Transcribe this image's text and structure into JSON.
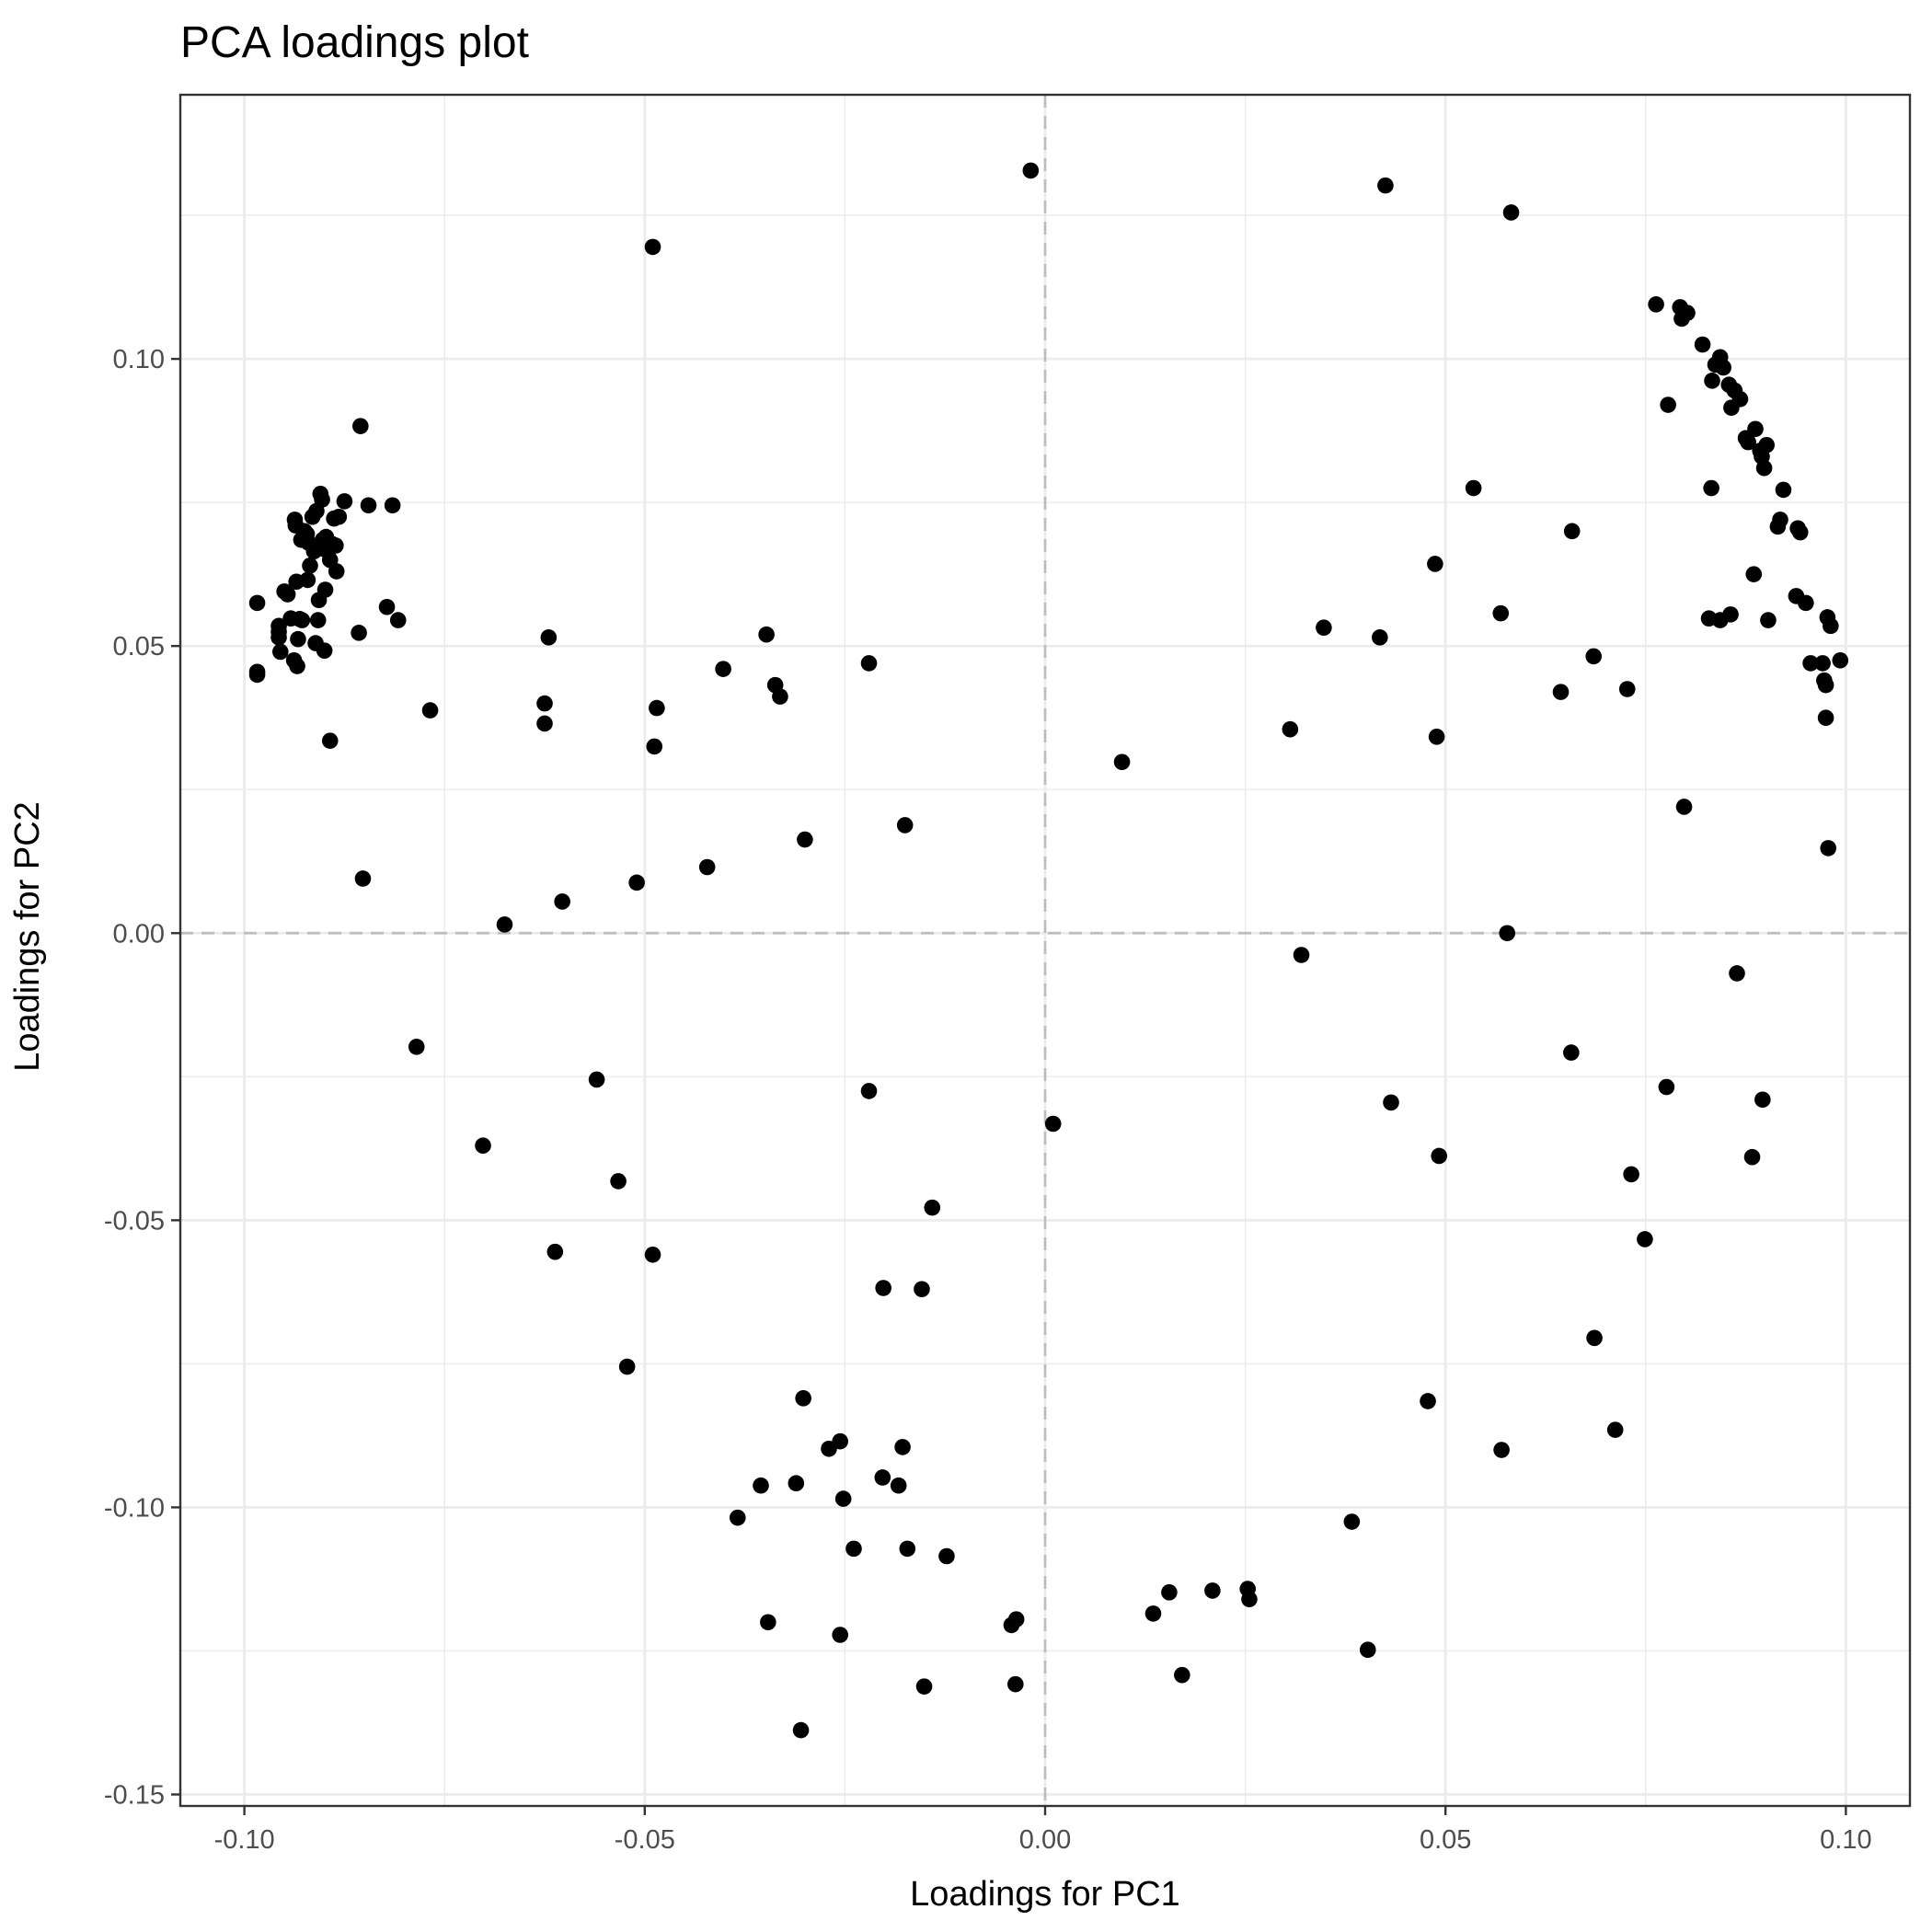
{
  "chart_data": {
    "type": "scatter",
    "title": "PCA loadings plot",
    "xlabel": "Loadings for PC1",
    "ylabel": "Loadings for PC2",
    "xlim": [
      -0.108,
      0.108
    ],
    "ylim": [
      -0.152,
      0.146
    ],
    "x_ticks": [
      -0.1,
      -0.05,
      0.0,
      0.05,
      0.1
    ],
    "x_tick_labels": [
      "-0.10",
      "-0.05",
      "0.00",
      "0.05",
      "0.10"
    ],
    "y_ticks": [
      -0.15,
      -0.1,
      -0.05,
      0.0,
      0.05,
      0.1
    ],
    "y_tick_labels": [
      "-0.15",
      "-0.10",
      "-0.05",
      "0.00",
      "0.05",
      "0.10"
    ],
    "reference_lines": {
      "x": 0,
      "y": 0,
      "style": "dashed",
      "color": "#bdbdbd"
    },
    "grid": true,
    "point_color": "#000000",
    "background": "#ffffff",
    "points": [
      [
        -0.0984,
        0.0575
      ],
      [
        -0.0984,
        0.0455
      ],
      [
        -0.0984,
        0.045
      ],
      [
        -0.0957,
        0.0535
      ],
      [
        -0.0957,
        0.0525
      ],
      [
        -0.0957,
        0.0515
      ],
      [
        -0.0955,
        0.049
      ],
      [
        -0.095,
        0.0595
      ],
      [
        -0.0946,
        0.059
      ],
      [
        -0.0942,
        0.0548
      ],
      [
        -0.0938,
        0.0475
      ],
      [
        -0.0937,
        0.072
      ],
      [
        -0.0936,
        0.071
      ],
      [
        -0.0935,
        0.0612
      ],
      [
        -0.0934,
        0.0465
      ],
      [
        -0.0933,
        0.0512
      ],
      [
        -0.0931,
        0.0547
      ],
      [
        -0.0929,
        0.0685
      ],
      [
        -0.0928,
        0.0545
      ],
      [
        -0.0925,
        0.07
      ],
      [
        -0.0922,
        0.0695
      ],
      [
        -0.0921,
        0.0615
      ],
      [
        -0.092,
        0.068
      ],
      [
        -0.0918,
        0.064
      ],
      [
        -0.0915,
        0.0725
      ],
      [
        -0.0913,
        0.0665
      ],
      [
        -0.0911,
        0.0505
      ],
      [
        -0.091,
        0.0735
      ],
      [
        -0.0908,
        0.0545
      ],
      [
        -0.0907,
        0.058
      ],
      [
        -0.0905,
        0.0765
      ],
      [
        -0.0904,
        0.067
      ],
      [
        -0.0903,
        0.0755
      ],
      [
        -0.0902,
        0.0685
      ],
      [
        -0.09,
        0.0492
      ],
      [
        -0.0899,
        0.0598
      ],
      [
        -0.0898,
        0.069
      ],
      [
        -0.0896,
        0.0665
      ],
      [
        -0.0894,
        0.0675
      ],
      [
        -0.0893,
        0.065
      ],
      [
        -0.0891,
        0.0678
      ],
      [
        -0.0888,
        0.0722
      ],
      [
        -0.0886,
        0.0675
      ],
      [
        -0.0885,
        0.063
      ],
      [
        -0.0882,
        0.0725
      ],
      [
        -0.0875,
        0.0752
      ],
      [
        -0.0857,
        0.0523
      ],
      [
        -0.0855,
        0.0883
      ],
      [
        -0.0852,
        0.0095
      ],
      [
        -0.0845,
        0.0745
      ],
      [
        -0.0822,
        0.0568
      ],
      [
        -0.0815,
        0.0745
      ],
      [
        -0.0808,
        0.0545
      ],
      [
        -0.0893,
        0.0335
      ],
      [
        -0.0785,
        -0.0198
      ],
      [
        -0.0768,
        0.0388
      ],
      [
        -0.0702,
        -0.037
      ],
      [
        -0.0675,
        0.0015
      ],
      [
        -0.0625,
        0.04
      ],
      [
        -0.0625,
        0.0365
      ],
      [
        -0.062,
        0.0515
      ],
      [
        -0.0612,
        -0.0555
      ],
      [
        -0.0603,
        0.0055
      ],
      [
        -0.056,
        -0.0255
      ],
      [
        -0.0533,
        -0.0432
      ],
      [
        -0.0522,
        -0.0755
      ],
      [
        -0.051,
        0.0088
      ],
      [
        -0.049,
        0.1195
      ],
      [
        -0.049,
        -0.056
      ],
      [
        -0.0488,
        0.0325
      ],
      [
        -0.0485,
        0.0392
      ],
      [
        -0.0422,
        0.0115
      ],
      [
        -0.0402,
        0.046
      ],
      [
        -0.0384,
        -0.1018
      ],
      [
        -0.0355,
        -0.0962
      ],
      [
        -0.0348,
        0.052
      ],
      [
        -0.0346,
        -0.12
      ],
      [
        -0.0337,
        0.0432
      ],
      [
        -0.0331,
        0.0412
      ],
      [
        -0.0311,
        -0.0958
      ],
      [
        -0.0305,
        -0.1388
      ],
      [
        -0.0302,
        -0.081
      ],
      [
        -0.03,
        0.0163
      ],
      [
        -0.027,
        -0.0898
      ],
      [
        -0.0256,
        -0.0885
      ],
      [
        -0.0256,
        -0.1222
      ],
      [
        -0.0252,
        -0.0985
      ],
      [
        -0.0239,
        -0.1072
      ],
      [
        -0.022,
        0.047
      ],
      [
        -0.022,
        -0.0275
      ],
      [
        -0.0203,
        -0.0948
      ],
      [
        -0.0202,
        -0.0618
      ],
      [
        -0.0183,
        -0.0962
      ],
      [
        -0.0178,
        -0.0895
      ],
      [
        -0.0175,
        0.0188
      ],
      [
        -0.0172,
        -0.1072
      ],
      [
        -0.0154,
        -0.062
      ],
      [
        -0.0151,
        -0.1312
      ],
      [
        -0.0141,
        -0.0478
      ],
      [
        -0.0123,
        -0.1085
      ],
      [
        -0.0042,
        -0.1205
      ],
      [
        -0.0036,
        -0.1195
      ],
      [
        -0.0037,
        -0.1308
      ],
      [
        -0.0018,
        0.1328
      ],
      [
        0.001,
        -0.0332
      ],
      [
        0.0096,
        0.0298
      ],
      [
        0.0135,
        -0.1185
      ],
      [
        0.0155,
        -0.1148
      ],
      [
        0.0171,
        -0.1292
      ],
      [
        0.0209,
        -0.1145
      ],
      [
        0.0253,
        -0.1142
      ],
      [
        0.0255,
        -0.116
      ],
      [
        0.0306,
        0.0355
      ],
      [
        0.032,
        -0.0038
      ],
      [
        0.0348,
        0.0532
      ],
      [
        0.0383,
        -0.1025
      ],
      [
        0.0403,
        -0.1248
      ],
      [
        0.0418,
        0.0515
      ],
      [
        0.0425,
        0.1302
      ],
      [
        0.0432,
        -0.0295
      ],
      [
        0.0478,
        -0.0815
      ],
      [
        0.0487,
        0.0643
      ],
      [
        0.0489,
        0.0342
      ],
      [
        0.0492,
        -0.0388
      ],
      [
        0.0535,
        0.0775
      ],
      [
        0.0569,
        0.0557
      ],
      [
        0.057,
        -0.09
      ],
      [
        0.0577,
        0.0
      ],
      [
        0.0582,
        0.1255
      ],
      [
        0.0644,
        0.042
      ],
      [
        0.0657,
        -0.0208
      ],
      [
        0.0658,
        0.07
      ],
      [
        0.0685,
        0.0482
      ],
      [
        0.0686,
        -0.0705
      ],
      [
        0.0712,
        -0.0865
      ],
      [
        0.0727,
        0.0425
      ],
      [
        0.0732,
        -0.042
      ],
      [
        0.0749,
        -0.0533
      ],
      [
        0.0763,
        0.1095
      ],
      [
        0.0776,
        -0.0268
      ],
      [
        0.0778,
        0.092
      ],
      [
        0.0793,
        0.109
      ],
      [
        0.0795,
        0.107
      ],
      [
        0.0798,
        0.022
      ],
      [
        0.0802,
        0.108
      ],
      [
        0.0821,
        0.1025
      ],
      [
        0.0829,
        0.0548
      ],
      [
        0.0832,
        0.0775
      ],
      [
        0.0833,
        0.0962
      ],
      [
        0.0837,
        0.099
      ],
      [
        0.0843,
        0.0545
      ],
      [
        0.0843,
        0.1003
      ],
      [
        0.0847,
        0.0985
      ],
      [
        0.0854,
        0.0955
      ],
      [
        0.0856,
        0.0555
      ],
      [
        0.0857,
        0.0915
      ],
      [
        0.0861,
        0.0945
      ],
      [
        0.0864,
        -0.007
      ],
      [
        0.0868,
        0.093
      ],
      [
        0.0875,
        0.0862
      ],
      [
        0.0878,
        0.0855
      ],
      [
        0.0883,
        -0.039
      ],
      [
        0.0885,
        0.0625
      ],
      [
        0.0887,
        0.0878
      ],
      [
        0.0893,
        0.084
      ],
      [
        0.0895,
        0.083
      ],
      [
        0.0896,
        -0.029
      ],
      [
        0.0898,
        0.081
      ],
      [
        0.0901,
        0.085
      ],
      [
        0.0903,
        0.0545
      ],
      [
        0.0915,
        0.0708
      ],
      [
        0.0918,
        0.072
      ],
      [
        0.0922,
        0.0772
      ],
      [
        0.0938,
        0.0587
      ],
      [
        0.094,
        0.0705
      ],
      [
        0.0943,
        0.0698
      ],
      [
        0.095,
        0.0575
      ],
      [
        0.0956,
        0.047
      ],
      [
        0.0971,
        0.047
      ],
      [
        0.0973,
        0.044
      ],
      [
        0.0975,
        0.0432
      ],
      [
        0.0975,
        0.0375
      ],
      [
        0.0977,
        0.055
      ],
      [
        0.0978,
        0.0148
      ],
      [
        0.0981,
        0.0535
      ],
      [
        0.0993,
        0.0475
      ]
    ]
  }
}
